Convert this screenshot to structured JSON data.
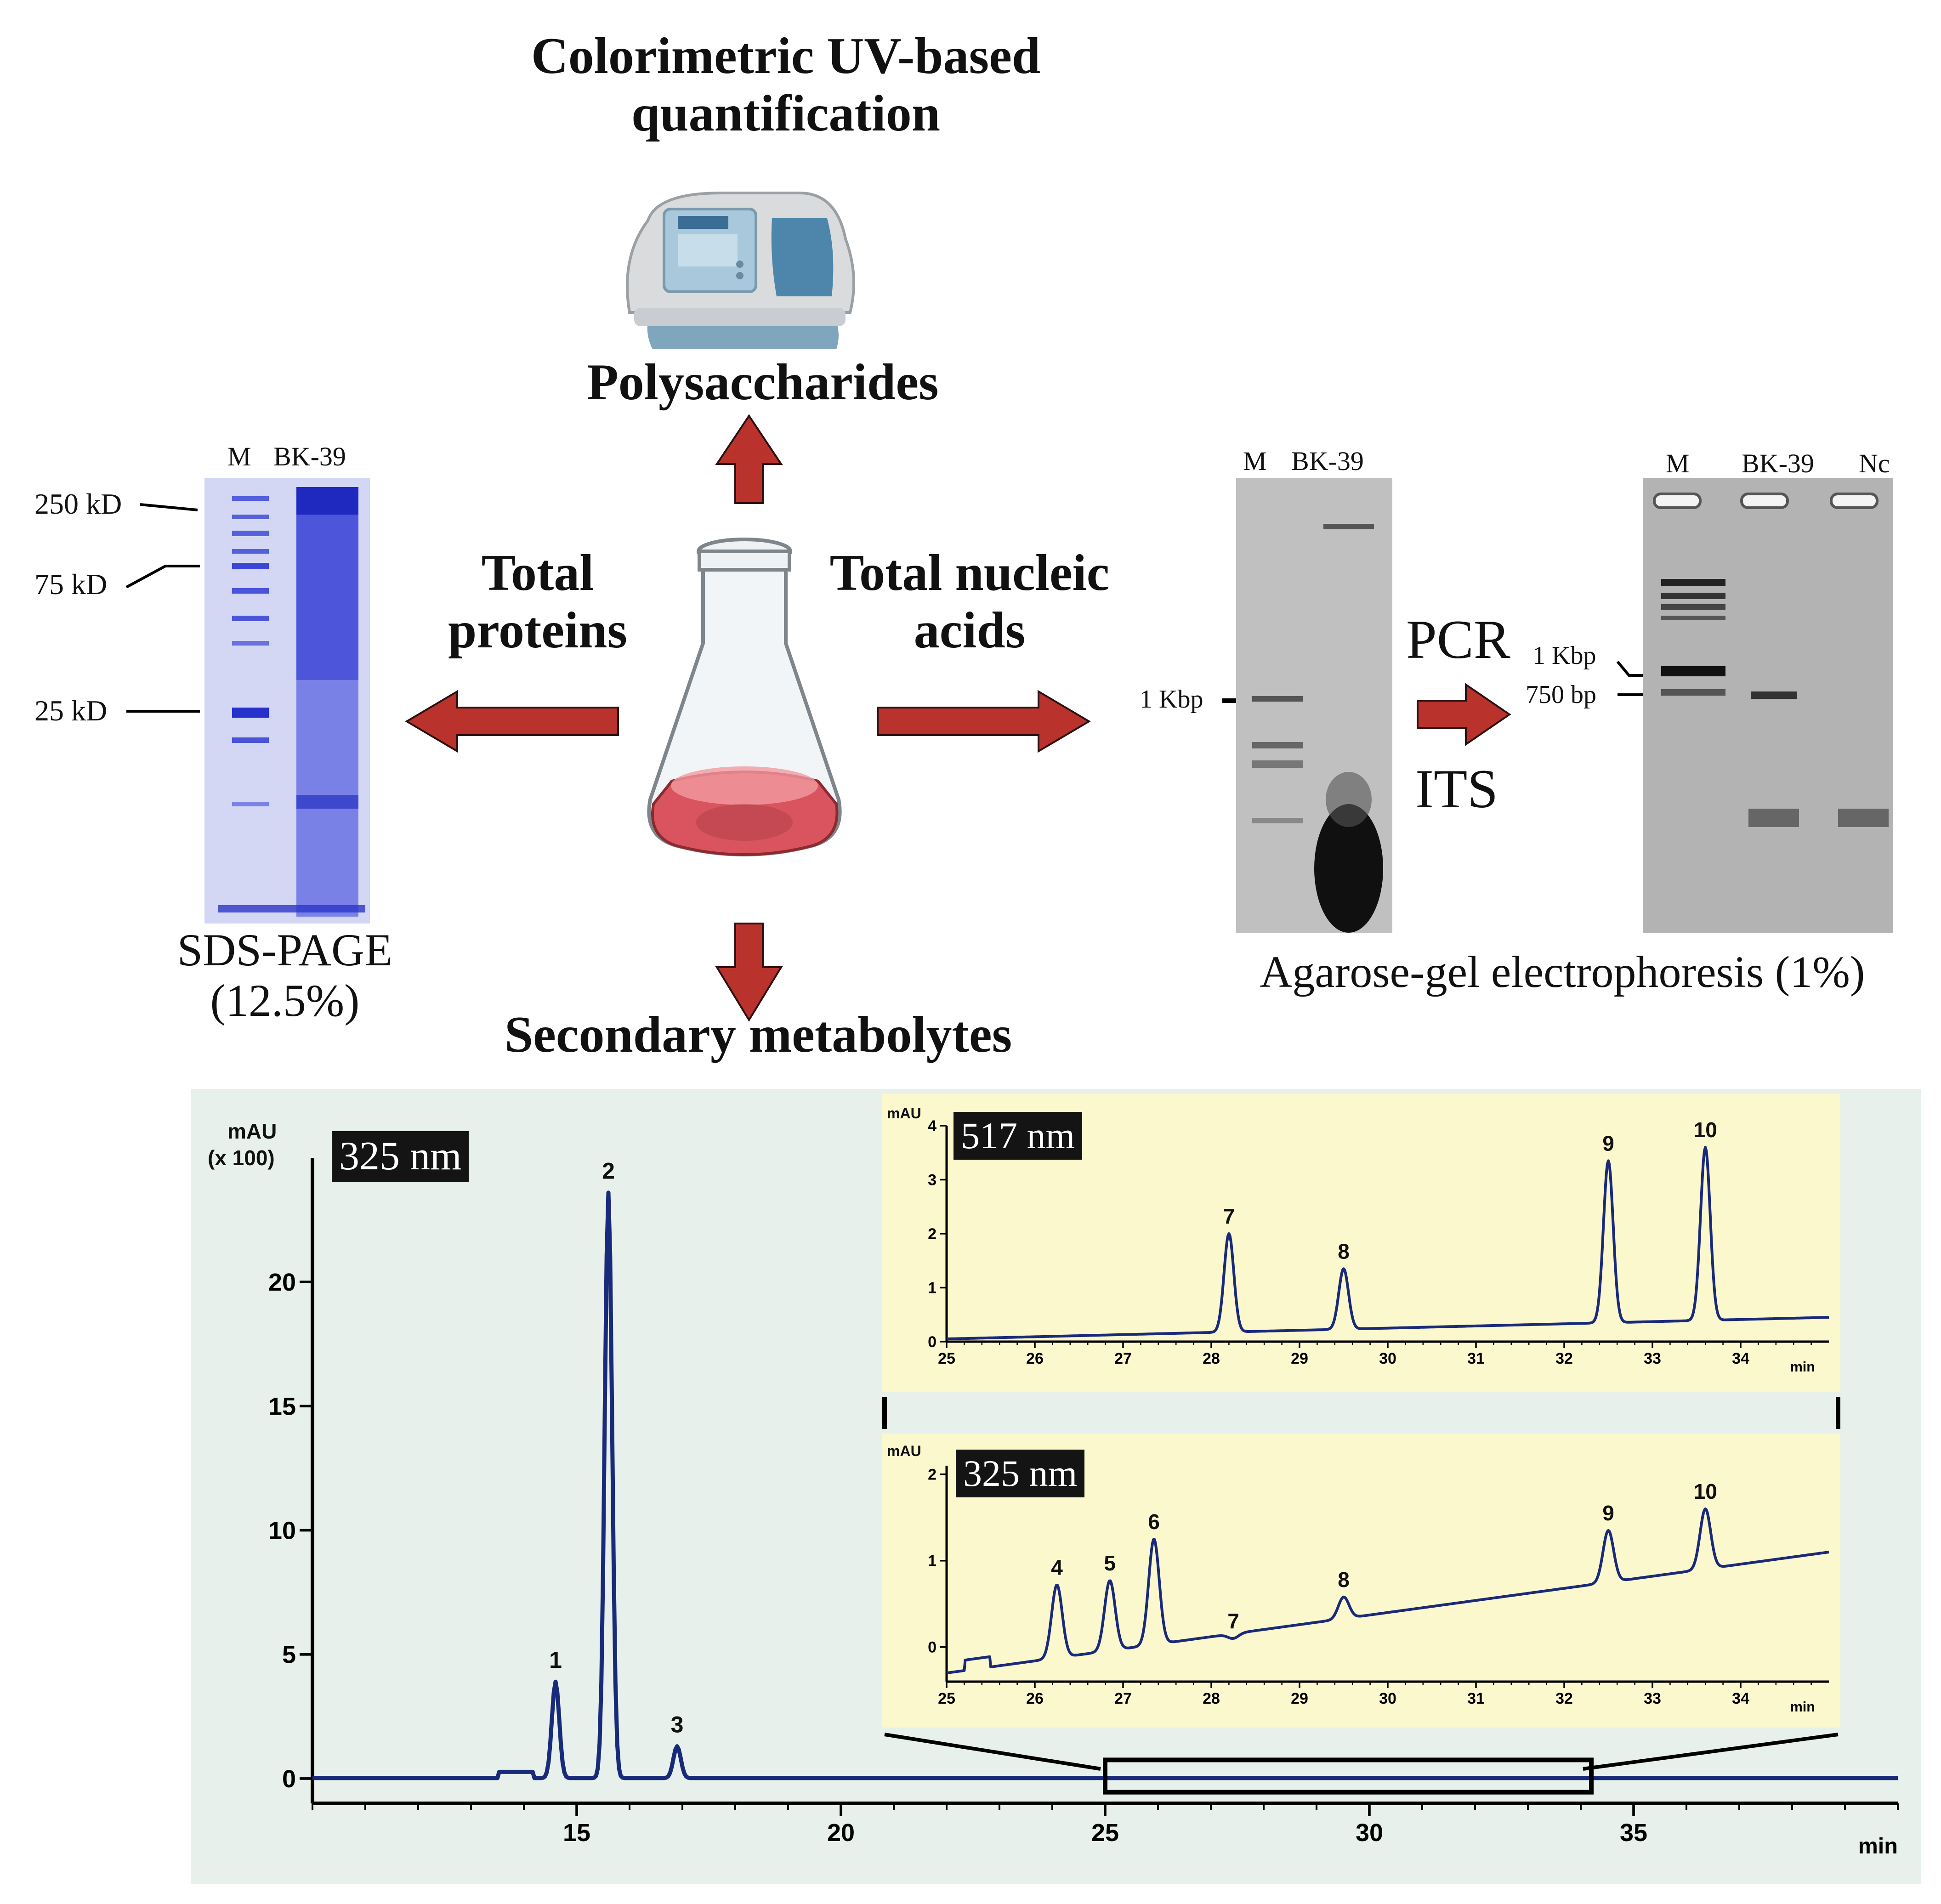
{
  "top": {
    "title": "Colorimetric UV-based quantification",
    "product": "Polysaccharides"
  },
  "center_labels": {
    "proteins": "Total proteins",
    "nucleic_acids": "Total nucleic acids",
    "metabolytes": "Secondary metabolytes"
  },
  "sds": {
    "lane_m": "M",
    "lane_bk": "BK-39",
    "marker_250": "250 kD",
    "marker_75": "75 kD",
    "marker_25": "25 kD",
    "caption_line1": "SDS-PAGE",
    "caption_line2": "(12.5%)"
  },
  "agarose1": {
    "lane_m": "M",
    "lane_bk": "BK-39",
    "marker_1kbp": "1 Kbp"
  },
  "pcr": {
    "label_top": "PCR",
    "label_bottom": "ITS"
  },
  "agarose2": {
    "lane_m": "M",
    "lane_bk": "BK-39",
    "lane_nc": "Nc",
    "marker_1kbp": "1 Kbp",
    "marker_750": "750 bp"
  },
  "agarose_caption": "Agarose-gel electrophoresis (1%)",
  "colors": {
    "arrow": "#b9322b",
    "trace": "#1a2a7a",
    "panel_bg": "#e7f0ea",
    "inset_bg": "#fbf8cd",
    "sds_stain": "#3b45d6",
    "liquid": "#d9545e"
  },
  "chart_data": [
    {
      "type": "line",
      "title": "325 nm",
      "ylabel_line1": "mAU",
      "ylabel_line2": "(x 100)",
      "xlabel": "min",
      "xlim": [
        10,
        40
      ],
      "ylim": [
        -1,
        25
      ],
      "xticks": [
        15,
        20,
        25,
        30,
        35
      ],
      "yticks": [
        0,
        5,
        10,
        15,
        20
      ],
      "peaks": [
        {
          "label": "1",
          "x": 14.6,
          "y": 3.9
        },
        {
          "label": "2",
          "x": 15.6,
          "y": 23.6
        },
        {
          "label": "3",
          "x": 16.9,
          "y": 1.3
        }
      ],
      "zoom_range": [
        25,
        34.2
      ]
    },
    {
      "type": "line",
      "title": "517 nm",
      "ylabel": "mAU",
      "xlabel": "min",
      "xlim": [
        25,
        35
      ],
      "ylim": [
        0,
        4
      ],
      "xticks": [
        25,
        26,
        27,
        28,
        29,
        30,
        31,
        32,
        33,
        34
      ],
      "yticks": [
        0,
        1,
        2,
        3,
        4
      ],
      "peaks": [
        {
          "label": "7",
          "x": 28.2,
          "y": 2.0
        },
        {
          "label": "8",
          "x": 29.5,
          "y": 1.35
        },
        {
          "label": "9",
          "x": 32.5,
          "y": 3.35
        },
        {
          "label": "10",
          "x": 33.6,
          "y": 3.6
        }
      ]
    },
    {
      "type": "line",
      "title": "325 nm",
      "ylabel": "mAU",
      "xlabel": "min",
      "xlim": [
        25,
        35
      ],
      "ylim": [
        -0.4,
        2.1
      ],
      "xticks": [
        25,
        26,
        27,
        28,
        29,
        30,
        31,
        32,
        33,
        34
      ],
      "yticks": [
        0,
        1,
        2
      ],
      "peaks": [
        {
          "label": "4",
          "x": 26.25,
          "y": 0.72
        },
        {
          "label": "5",
          "x": 26.85,
          "y": 0.77
        },
        {
          "label": "6",
          "x": 27.35,
          "y": 1.25
        },
        {
          "label": "7",
          "x": 28.25,
          "y": 0.1
        },
        {
          "label": "8",
          "x": 29.5,
          "y": 0.58
        },
        {
          "label": "9",
          "x": 32.5,
          "y": 1.35
        },
        {
          "label": "10",
          "x": 33.6,
          "y": 1.6
        }
      ]
    }
  ]
}
